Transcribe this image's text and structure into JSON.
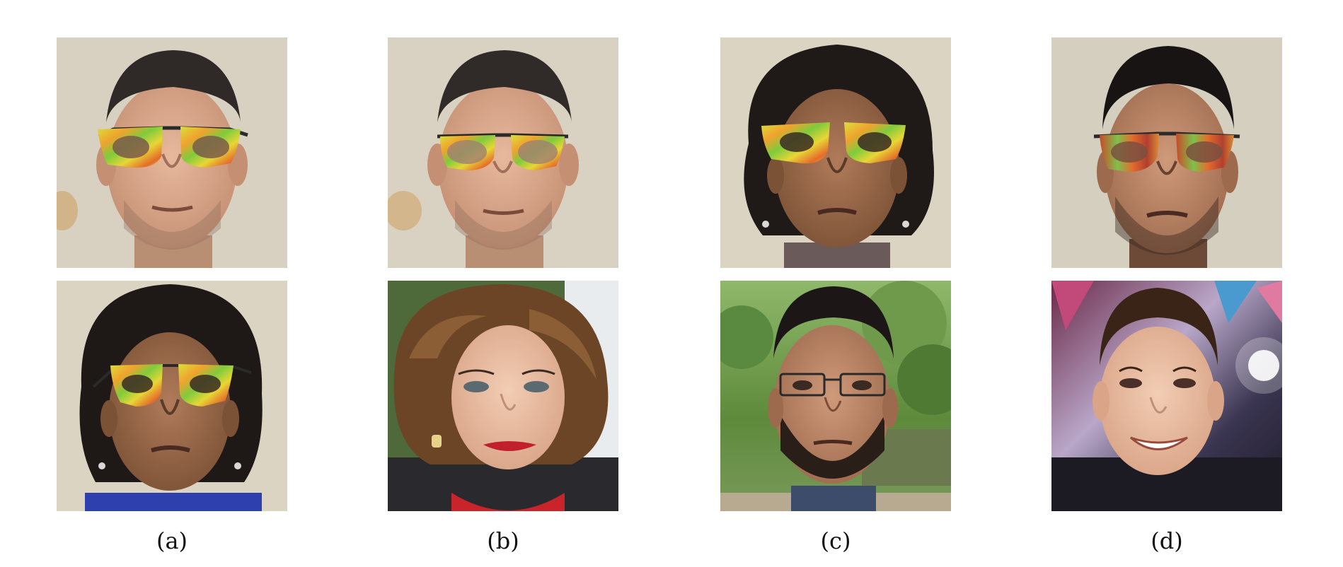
{
  "captions": [
    "(a)",
    "(b)",
    "(c)",
    "(d)"
  ],
  "colors": {
    "wall": "#d9d2c2",
    "glasses_frame_yellow": "#d7e23a",
    "glasses_frame_orange": "#e86a2a",
    "glasses_frame_green": "#7cc63a"
  }
}
